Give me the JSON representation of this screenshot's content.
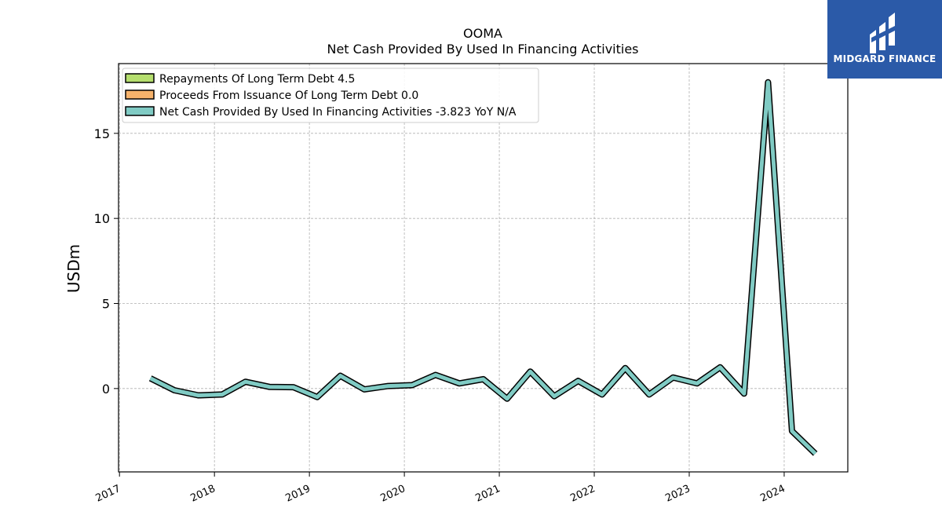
{
  "chart_data": {
    "type": "line",
    "title": "OOMA",
    "subtitle": "Net Cash Provided By Used In Financing Activities",
    "ylabel": "USDm",
    "xlabel": "",
    "ylim": [
      -4.9,
      19.1
    ],
    "xlim": [
      2016.99,
      2024.67
    ],
    "yticks": [
      0,
      5,
      10,
      15
    ],
    "xticks": [
      "2017",
      "2018",
      "2019",
      "2020",
      "2021",
      "2022",
      "2023",
      "2024"
    ],
    "grid": true,
    "legend_position": "top-left",
    "series": [
      {
        "name": "Repayments Of Long Term Debt  4.5",
        "color": "#b5de6e",
        "x": [],
        "values": []
      },
      {
        "name": "Proceeds From Issuance Of Long Term Debt  0.0",
        "color": "#f6b26b",
        "x": [],
        "values": []
      },
      {
        "name": "Net Cash Provided By Used In Financing Activities  -3.823 YoY N/A",
        "color": "#80cbc4",
        "x": [
          "2017-04-30",
          "2017-07-31",
          "2017-10-31",
          "2018-01-31",
          "2018-04-30",
          "2018-07-31",
          "2018-10-31",
          "2019-01-31",
          "2019-04-30",
          "2019-07-31",
          "2019-10-31",
          "2020-01-31",
          "2020-04-30",
          "2020-07-31",
          "2020-10-31",
          "2021-01-31",
          "2021-04-30",
          "2021-07-31",
          "2021-10-31",
          "2022-01-31",
          "2022-04-30",
          "2022-07-31",
          "2022-10-31",
          "2023-01-31",
          "2023-04-30",
          "2023-07-31",
          "2023-10-31",
          "2024-01-31",
          "2024-04-30"
        ],
        "values": [
          0.6,
          -0.1,
          -0.4,
          -0.35,
          0.4,
          0.1,
          0.08,
          -0.5,
          0.75,
          -0.05,
          0.15,
          0.2,
          0.8,
          0.3,
          0.55,
          -0.6,
          1.0,
          -0.45,
          0.45,
          -0.35,
          1.2,
          -0.35,
          0.65,
          0.3,
          1.25,
          -0.3,
          18.0,
          -2.5,
          -3.823
        ]
      }
    ]
  },
  "logo": {
    "text": "MIDGARD FINANCE",
    "bg_color": "#2b5aa8"
  }
}
